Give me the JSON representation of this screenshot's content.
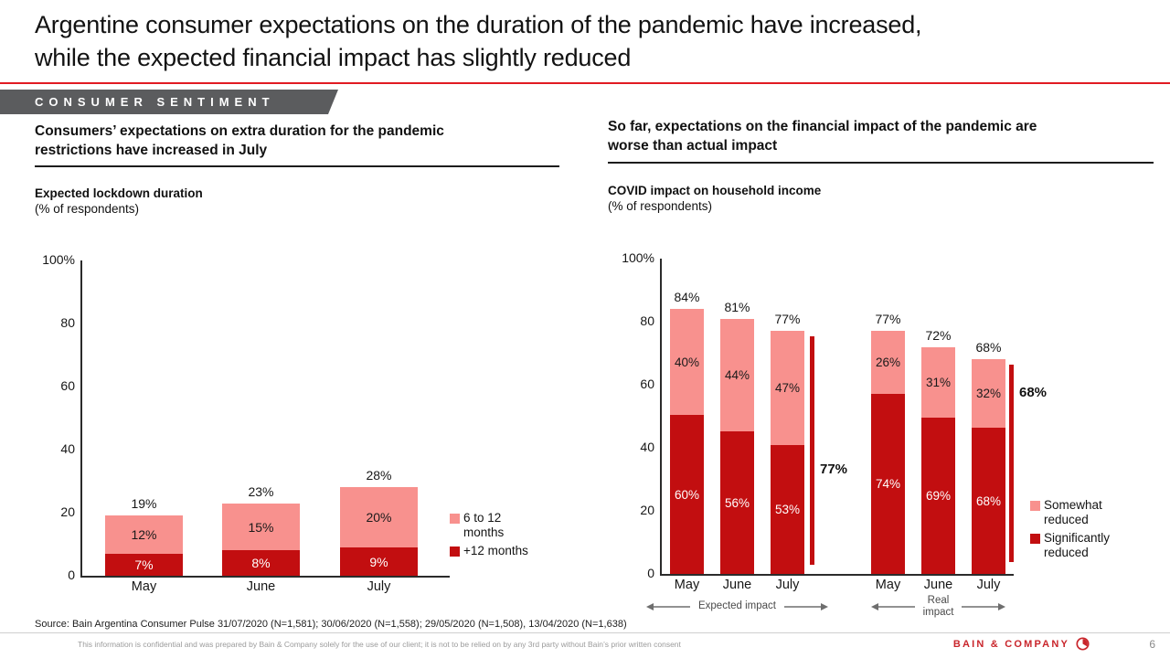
{
  "slide": {
    "title": "Argentine consumer expectations on the duration of the pandemic have increased,\nwhile the expected financial impact has slightly reduced",
    "section_tag": "CONSUMER SENTIMENT",
    "page_number": "6",
    "source": "Source: Bain Argentina Consumer Pulse 31/07/2020 (N=1,581); 30/06/2020 (N=1,558); 29/05/2020 (N=1,508), 13/04/2020 (N=1,638)",
    "disclaimer": "This information is confidential and was prepared by Bain & Company solely for the use of our client; it is not to be relied on by any 3rd party without Bain’s prior written consent",
    "brand": "BAIN & COMPANY"
  },
  "colors": {
    "accent_red": "#E11B22",
    "bar_dark_red": "#C20E10",
    "bar_pink": "#F8918E",
    "banner_gray": "#5B5C5E",
    "brand_red": "#C9252B"
  },
  "left_panel": {
    "heading": "Consumers’ expectations on extra duration for the pandemic\nrestrictions have increased in July",
    "chart_title": "Expected lockdown duration",
    "chart_subtitle": "(% of respondents)"
  },
  "right_panel": {
    "heading": "So far, expectations on the financial impact of the pandemic are\nworse than actual impact",
    "chart_title": "COVID impact on household income",
    "chart_subtitle": "(% of respondents)"
  },
  "chart_data": [
    {
      "type": "bar",
      "stacked": true,
      "title": "Expected lockdown duration",
      "ylabel": "% of respondents",
      "ylim": [
        0,
        100
      ],
      "yticks": [
        {
          "value": 0,
          "label": "0"
        },
        {
          "value": 20,
          "label": "20"
        },
        {
          "value": 40,
          "label": "40"
        },
        {
          "value": 60,
          "label": "60"
        },
        {
          "value": 80,
          "label": "80"
        },
        {
          "value": 100,
          "label": "100%"
        }
      ],
      "categories": [
        "May",
        "June",
        "July"
      ],
      "series": [
        {
          "name": "+12 months",
          "swatch": "dark_red",
          "values": [
            7,
            8,
            9
          ]
        },
        {
          "name": "6 to 12 months",
          "swatch": "pink",
          "values": [
            12,
            15,
            20
          ]
        }
      ],
      "totals": [
        19,
        23,
        28
      ],
      "legend": [
        {
          "label": "6 to 12\nmonths",
          "swatch": "pink"
        },
        {
          "label": "+12 months",
          "swatch": "dark_red"
        }
      ]
    },
    {
      "type": "bar",
      "stacked": true,
      "title": "COVID impact on household income",
      "ylabel": "% of respondents",
      "ylim": [
        0,
        100
      ],
      "yticks": [
        {
          "value": 0,
          "label": "0"
        },
        {
          "value": 20,
          "label": "20"
        },
        {
          "value": 40,
          "label": "40"
        },
        {
          "value": 60,
          "label": "60"
        },
        {
          "value": 80,
          "label": "80"
        },
        {
          "value": 100,
          "label": "100%"
        }
      ],
      "groups": [
        {
          "label": "Expected impact",
          "categories": [
            "May",
            "June",
            "July"
          ],
          "totals": [
            84,
            81,
            77
          ],
          "significantly_reduced_pct": [
            60,
            56,
            53
          ],
          "somewhat_reduced_pct": [
            40,
            44,
            47
          ],
          "annotation": "77%"
        },
        {
          "label": "Real\nimpact",
          "categories": [
            "May",
            "June",
            "July"
          ],
          "totals": [
            77,
            72,
            68
          ],
          "significantly_reduced_pct": [
            74,
            69,
            68
          ],
          "somewhat_reduced_pct": [
            26,
            31,
            32
          ],
          "annotation": "68%"
        }
      ],
      "legend": [
        {
          "label": "Somewhat\nreduced",
          "swatch": "pink"
        },
        {
          "label": "Significantly\nreduced",
          "swatch": "dark_red"
        }
      ]
    }
  ]
}
